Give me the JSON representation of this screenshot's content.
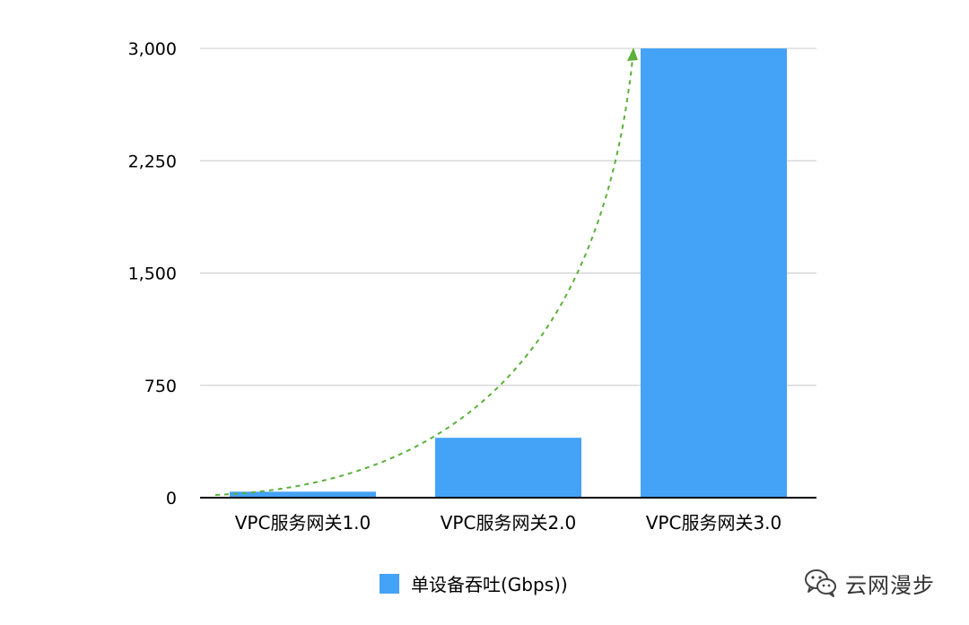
{
  "chart_data": {
    "type": "bar",
    "categories": [
      "VPC服务网关1.0",
      "VPC服务网关2.0",
      "VPC服务网关3.0"
    ],
    "series": [
      {
        "name": "单设备吞吐(Gbps))",
        "values": [
          40,
          400,
          3000
        ]
      }
    ],
    "yticks": [
      "0",
      "750",
      "1,500",
      "2,250",
      "3,000"
    ],
    "ytick_values": [
      0,
      750,
      1500,
      2250,
      3000
    ],
    "ylim": [
      0,
      3000
    ],
    "grid": true,
    "legend": "bottom-center",
    "annotation": "dashed-trend-arrow",
    "colors": {
      "bar": "#44a2f7",
      "trend": "#5bb03a",
      "grid": "#c8c8c8",
      "axis": "#000000"
    }
  },
  "watermark": {
    "text": "云网漫步",
    "icon": "wechat-icon"
  }
}
